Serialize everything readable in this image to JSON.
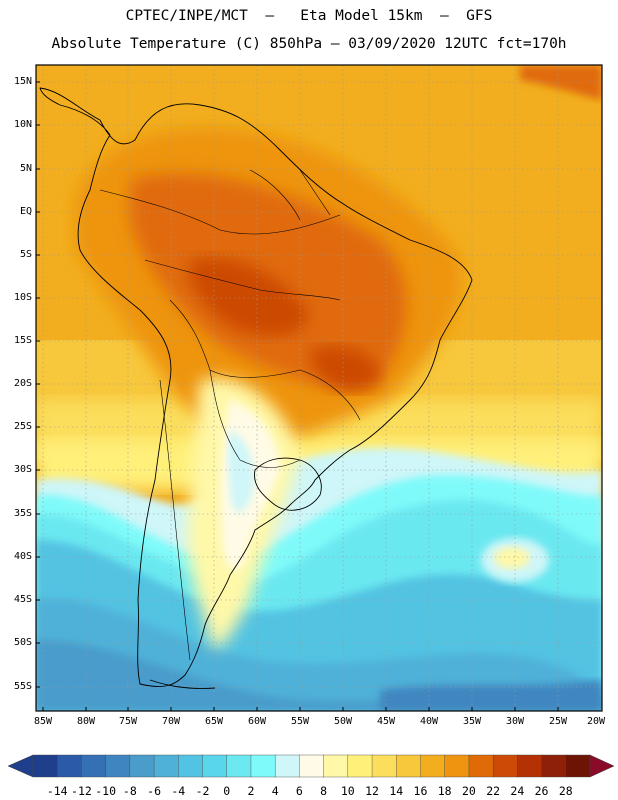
{
  "title_line1": "CPTEC/INPE/MCT  –   Eta Model 15km  –  GFS",
  "title_line2": "Absolute Temperature (C) 850hPa – 03/09/2020 12UTC fct=170h",
  "lat_labels": [
    "15N",
    "10N",
    "5N",
    "EQ",
    "5S",
    "10S",
    "15S",
    "20S",
    "25S",
    "30S",
    "35S",
    "40S",
    "45S",
    "50S",
    "55S"
  ],
  "lon_labels": [
    "85W",
    "80W",
    "75W",
    "70W",
    "65W",
    "60W",
    "55W",
    "50W",
    "45W",
    "40W",
    "35W",
    "30W",
    "25W",
    "20W"
  ],
  "colorbar": {
    "labels": [
      "-14",
      "-12",
      "-10",
      "-8",
      "-6",
      "-4",
      "-2",
      "0",
      "2",
      "4",
      "6",
      "8",
      "10",
      "12",
      "14",
      "16",
      "18",
      "20",
      "22",
      "24",
      "26",
      "28"
    ],
    "colors": [
      "#1f3e8c",
      "#2a5aa8",
      "#3570b4",
      "#3f86c0",
      "#4a9ccb",
      "#4fb1d8",
      "#52c3e2",
      "#5ad6ea",
      "#6be8f0",
      "#7ffafa",
      "#cff6f8",
      "#fffbe6",
      "#fff8a8",
      "#fff07a",
      "#fbde5c",
      "#f7c73c",
      "#f2ae1e",
      "#ee9410",
      "#e06a08",
      "#cc4a06",
      "#b43005",
      "#8e1f08",
      "#6e1404"
    ]
  },
  "colors": {
    "warm_tropics": "#e58a1a",
    "hot_core": "#d46010",
    "subtropical": "#f0b030",
    "cold_ocean": "#4fb8d8",
    "very_cold": "#3f86c0",
    "coastline": "#000000"
  }
}
